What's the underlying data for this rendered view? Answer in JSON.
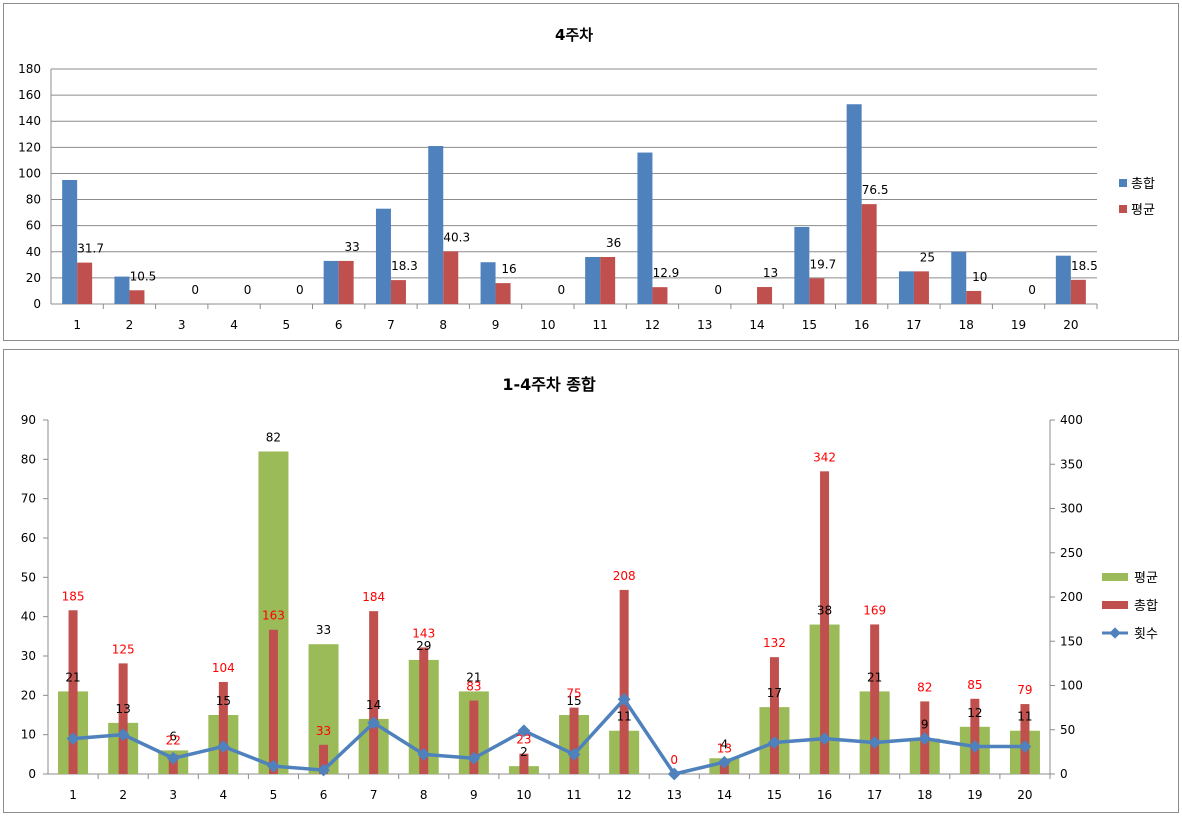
{
  "chart_data": [
    {
      "type": "bar",
      "title": "4주차",
      "categories": [
        "1",
        "2",
        "3",
        "4",
        "5",
        "6",
        "7",
        "8",
        "9",
        "10",
        "11",
        "12",
        "13",
        "14",
        "15",
        "16",
        "17",
        "18",
        "19",
        "20"
      ],
      "ylim": [
        0,
        180
      ],
      "yticks": [
        0,
        20,
        40,
        60,
        80,
        100,
        120,
        140,
        160,
        180
      ],
      "grid": true,
      "legend_position": "right",
      "series": [
        {
          "name": "총합",
          "color": "#4f81bd",
          "values": [
            95,
            21,
            0,
            0,
            0,
            33,
            73,
            121,
            32,
            0,
            36,
            116,
            0,
            0,
            59,
            153,
            25,
            40,
            0,
            37
          ]
        },
        {
          "name": "평균",
          "color": "#c0504d",
          "values": [
            31.7,
            10.5,
            0,
            0,
            0,
            33,
            18.3,
            40.3,
            16,
            0,
            36,
            12.9,
            0,
            13,
            19.7,
            76.5,
            25,
            10,
            0,
            18.5
          ],
          "data_labels": [
            "31.7",
            "10.5",
            "0",
            "0",
            "0",
            "33",
            "18.3",
            "40.3",
            "16",
            "0",
            "36",
            "12.9",
            "0",
            "13",
            "19.7",
            "76.5",
            "25",
            "10",
            "0",
            "18.5"
          ]
        }
      ]
    },
    {
      "type": "bar",
      "title": "1-4주차 종합",
      "categories": [
        "1",
        "2",
        "3",
        "4",
        "5",
        "6",
        "7",
        "8",
        "9",
        "10",
        "11",
        "12",
        "13",
        "14",
        "15",
        "16",
        "17",
        "18",
        "19",
        "20"
      ],
      "ylim": [
        0,
        90
      ],
      "yticks": [
        0,
        10,
        20,
        30,
        40,
        50,
        60,
        70,
        80,
        90
      ],
      "y2lim": [
        0,
        400
      ],
      "y2ticks": [
        0,
        50,
        100,
        150,
        200,
        250,
        300,
        350,
        400
      ],
      "grid": false,
      "legend_position": "right",
      "series": [
        {
          "name": "평균",
          "type": "bar",
          "axis": "left",
          "color": "#9bbb59",
          "values": [
            21,
            13,
            6,
            15,
            82,
            33,
            14,
            29,
            21,
            2,
            15,
            11,
            0,
            4,
            17,
            38,
            21,
            9,
            12,
            11
          ],
          "data_labels": [
            "21",
            "13",
            "6",
            "15",
            "82",
            "33",
            "14",
            "29",
            "21",
            "2",
            "15",
            "11",
            "",
            "4",
            "17",
            "38",
            "21",
            "9",
            "12",
            "11"
          ]
        },
        {
          "name": "총합",
          "type": "bar",
          "axis": "right",
          "color": "#c0504d",
          "values": [
            185,
            125,
            22,
            104,
            163,
            33,
            184,
            143,
            83,
            23,
            75,
            208,
            0,
            13,
            132,
            342,
            169,
            82,
            85,
            79
          ],
          "data_labels": [
            "185",
            "125",
            "22",
            "104",
            "163",
            "33",
            "184",
            "143",
            "83",
            "23",
            "75",
            "208",
            "0",
            "13",
            "132",
            "342",
            "169",
            "82",
            "85",
            "79"
          ]
        },
        {
          "name": "횟수",
          "type": "line",
          "axis": "left",
          "color": "#4f81bd",
          "values": [
            9,
            10,
            4,
            7,
            2,
            1,
            13,
            5,
            4,
            11,
            5,
            19,
            0,
            3,
            8,
            9,
            8,
            9,
            7,
            7
          ]
        }
      ]
    }
  ]
}
